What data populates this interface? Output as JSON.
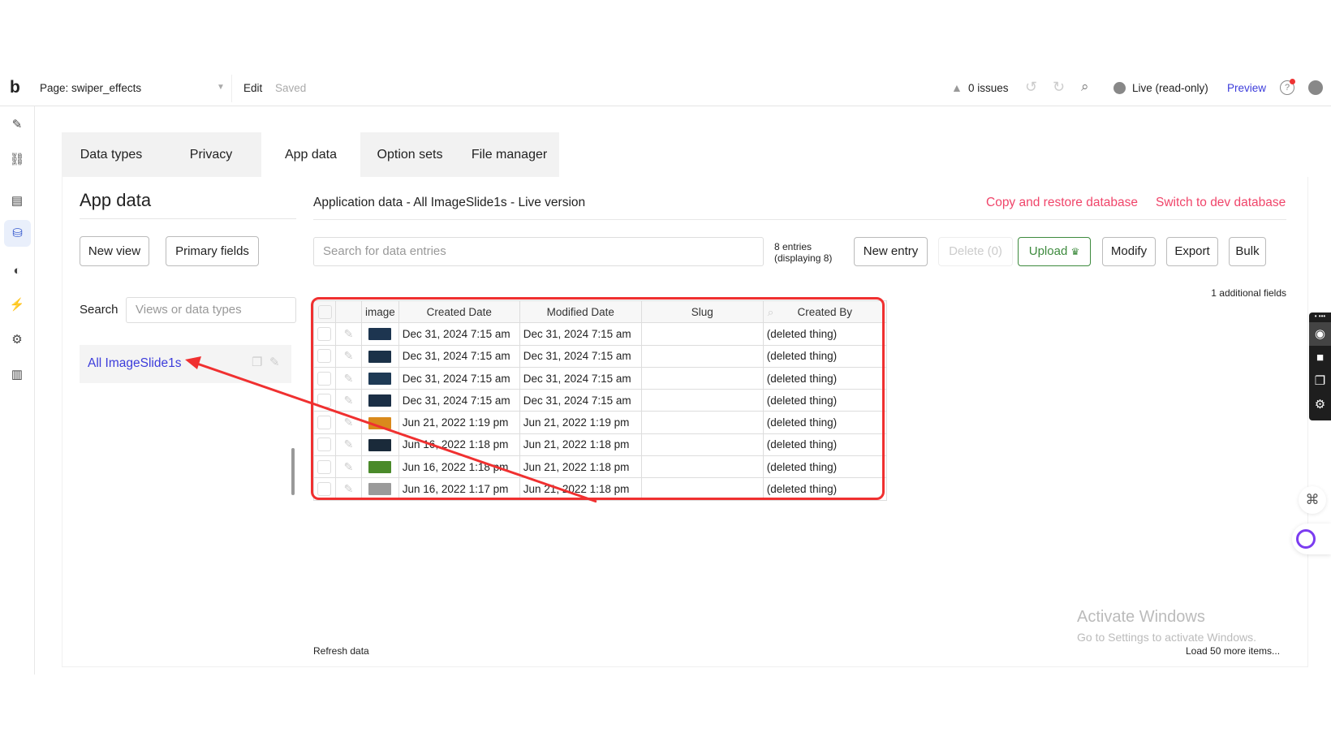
{
  "topbar": {
    "logo": "b",
    "page_label": "Page: swiper_effects",
    "edit": "Edit",
    "saved": "Saved",
    "issues": "0 issues",
    "live": "Live (read-only)",
    "preview": "Preview"
  },
  "tabs": [
    {
      "label": "Data types"
    },
    {
      "label": "Privacy"
    },
    {
      "label": "App data",
      "active": true
    },
    {
      "label": "Option sets"
    },
    {
      "label": "File manager"
    }
  ],
  "left": {
    "title": "App data",
    "new_view": "New view",
    "primary_fields": "Primary fields",
    "search_label": "Search",
    "search_placeholder": "Views or data types",
    "views": [
      {
        "label": "All ImageSlide1s"
      }
    ]
  },
  "main": {
    "title": "Application data - All ImageSlide1s - Live version",
    "copy_restore": "Copy and restore database",
    "switch_dev": "Switch to dev database",
    "search_placeholder": "Search for data entries",
    "entries_count": "8 entries",
    "entries_displaying": "(displaying 8)",
    "buttons": {
      "new_entry": "New entry",
      "delete": "Delete (0)",
      "upload": "Upload",
      "modify": "Modify",
      "export": "Export",
      "bulk": "Bulk"
    },
    "additional_fields": "1 additional fields",
    "columns": [
      "image",
      "Created Date",
      "Modified Date",
      "Slug",
      "Created By"
    ],
    "rows": [
      {
        "created": "Dec 31, 2024 7:15 am",
        "modified": "Dec 31, 2024 7:15 am",
        "slug": "",
        "created_by": "(deleted thing)",
        "thumb": "#1d3550"
      },
      {
        "created": "Dec 31, 2024 7:15 am",
        "modified": "Dec 31, 2024 7:15 am",
        "slug": "",
        "created_by": "(deleted thing)",
        "thumb": "#1b3148"
      },
      {
        "created": "Dec 31, 2024 7:15 am",
        "modified": "Dec 31, 2024 7:15 am",
        "slug": "",
        "created_by": "(deleted thing)",
        "thumb": "#1e3a55"
      },
      {
        "created": "Dec 31, 2024 7:15 am",
        "modified": "Dec 31, 2024 7:15 am",
        "slug": "",
        "created_by": "(deleted thing)",
        "thumb": "#1b2f46"
      },
      {
        "created": "Jun 21, 2022 1:19 pm",
        "modified": "Jun 21, 2022 1:19 pm",
        "slug": "",
        "created_by": "(deleted thing)",
        "thumb": "#d98a1c"
      },
      {
        "created": "Jun 16, 2022 1:18 pm",
        "modified": "Jun 21, 2022 1:18 pm",
        "slug": "",
        "created_by": "(deleted thing)",
        "thumb": "#1a2a3a"
      },
      {
        "created": "Jun 16, 2022 1:18 pm",
        "modified": "Jun 21, 2022 1:18 pm",
        "slug": "",
        "created_by": "(deleted thing)",
        "thumb": "#4a8a2a"
      },
      {
        "created": "Jun 16, 2022 1:17 pm",
        "modified": "Jun 21, 2022 1:18 pm",
        "slug": "",
        "created_by": "(deleted thing)",
        "thumb": "#9a9a9a"
      }
    ],
    "refresh": "Refresh data",
    "load_more": "Load 50 more items..."
  },
  "watermark": {
    "title": "Activate Windows",
    "subtitle": "Go to Settings to activate Windows."
  },
  "colors": {
    "accent_blue": "#3c3cdb",
    "link_red": "#f0456a",
    "highlight_red": "#f03030",
    "upload_green": "#3d8a3d"
  }
}
